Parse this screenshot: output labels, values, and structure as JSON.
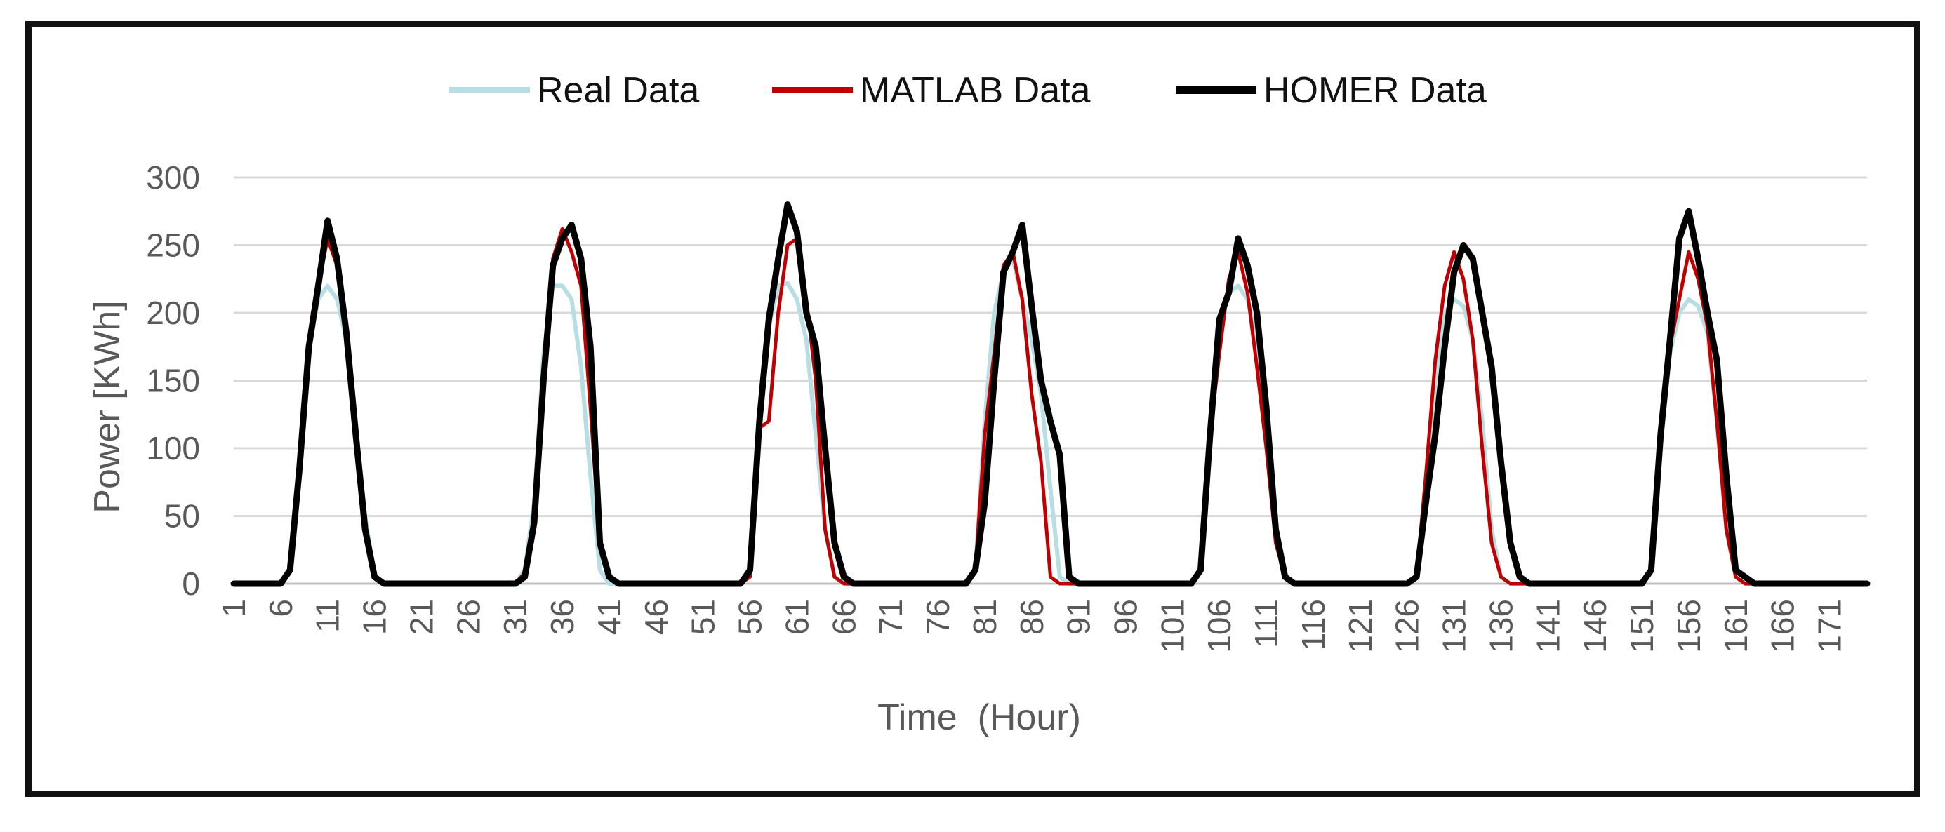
{
  "chart_data": {
    "type": "line",
    "title": "",
    "xlabel": "Time  (Hour)",
    "ylabel": "Power [KWh]",
    "ylim": [
      0,
      300
    ],
    "yticks": [
      "0",
      "50",
      "100",
      "150",
      "200",
      "250",
      "300"
    ],
    "xlim": [
      1,
      175
    ],
    "xtick_labels": [
      "1",
      "6",
      "11",
      "16",
      "21",
      "26",
      "31",
      "36",
      "41",
      "46",
      "51",
      "56",
      "61",
      "66",
      "71",
      "76",
      "81",
      "86",
      "91",
      "96",
      "101",
      "106",
      "111",
      "116",
      "121",
      "126",
      "131",
      "136",
      "141",
      "146",
      "151",
      "156",
      "161",
      "166",
      "171"
    ],
    "legend_position": "top-center",
    "series": [
      {
        "name": "Real Data",
        "color": "#b7dfe3",
        "days": [
          {
            "start": 7,
            "values": [
              10,
              80,
              175,
              210,
              220,
              210,
              180,
              110,
              50,
              5
            ]
          },
          {
            "start": 32,
            "values": [
              10,
              60,
              170,
              220,
              220,
              210,
              160,
              80,
              10
            ]
          },
          {
            "start": 56,
            "values": [
              8,
              120,
              190,
              220,
              222,
              210,
              180,
              110,
              40,
              5
            ]
          },
          {
            "start": 80,
            "values": [
              10,
              120,
              200,
              230,
              240,
              210,
              180,
              140,
              70,
              5
            ]
          },
          {
            "start": 104,
            "values": [
              10,
              100,
              190,
              215,
              220,
              210,
              180,
              110,
              40,
              5
            ]
          },
          {
            "start": 127,
            "values": [
              5,
              60,
              150,
              200,
              210,
              205,
              180,
              120,
              40,
              5
            ]
          },
          {
            "start": 152,
            "values": [
              10,
              100,
              170,
              200,
              210,
              205,
              185,
              120,
              40,
              5
            ]
          }
        ]
      },
      {
        "name": "MATLAB Data",
        "color": "#c00000",
        "days": [
          {
            "start": 7,
            "values": [
              10,
              85,
              170,
              220,
              255,
              235,
              190,
              120,
              40,
              5
            ]
          },
          {
            "start": 32,
            "values": [
              8,
              40,
              150,
              240,
              262,
              245,
              220,
              130,
              30,
              5
            ]
          },
          {
            "start": 56,
            "values": [
              5,
              115,
              120,
              200,
              250,
              255,
              210,
              150,
              40,
              5
            ]
          },
          {
            "start": 80,
            "values": [
              10,
              110,
              170,
              235,
              245,
              210,
              140,
              90,
              5
            ]
          },
          {
            "start": 104,
            "values": [
              10,
              110,
              170,
              225,
              245,
              215,
              160,
              100,
              30,
              5
            ]
          },
          {
            "start": 127,
            "values": [
              5,
              80,
              165,
              220,
              245,
              225,
              180,
              100,
              30,
              5
            ]
          },
          {
            "start": 152,
            "values": [
              10,
              100,
              175,
              210,
              245,
              225,
              190,
              120,
              40,
              5
            ]
          }
        ]
      },
      {
        "name": "HOMER Data",
        "color": "#000000",
        "days": [
          {
            "start": 7,
            "values": [
              10,
              85,
              175,
              220,
              268,
              240,
              185,
              110,
              40,
              5
            ]
          },
          {
            "start": 32,
            "values": [
              5,
              45,
              150,
              235,
              255,
              265,
              240,
              175,
              30,
              5
            ]
          },
          {
            "start": 56,
            "values": [
              10,
              120,
              195,
              240,
              280,
              260,
              200,
              175,
              100,
              30,
              5
            ]
          },
          {
            "start": 80,
            "values": [
              10,
              60,
              150,
              230,
              245,
              265,
              205,
              150,
              120,
              95,
              5
            ]
          },
          {
            "start": 104,
            "values": [
              10,
              110,
              195,
              215,
              255,
              235,
              200,
              130,
              40,
              5
            ]
          },
          {
            "start": 127,
            "values": [
              5,
              60,
              110,
              175,
              230,
              250,
              240,
              200,
              160,
              90,
              30,
              5
            ]
          },
          {
            "start": 152,
            "values": [
              10,
              110,
              180,
              255,
              275,
              240,
              200,
              165,
              80,
              10,
              5
            ]
          }
        ]
      }
    ]
  }
}
